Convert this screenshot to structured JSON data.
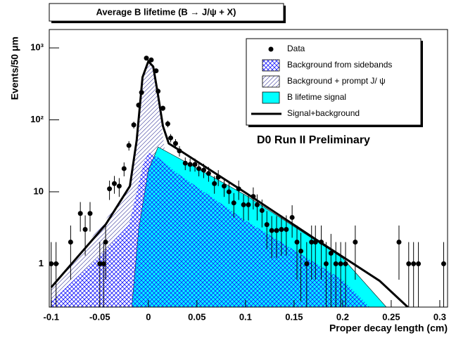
{
  "chart_data": {
    "type": "scatter",
    "title": "Average B lifetime (B → J/ψ + X)",
    "annotation": "D0 Run II Preliminary",
    "annotation_color": "#ff0000",
    "xlabel": "Proper decay length (cm)",
    "ylabel": "Events/50 μm",
    "log_y": true,
    "legend": "top-right",
    "xlim": [
      -0.102,
      0.308
    ],
    "ylim": [
      0.25,
      1800
    ],
    "xticks": [
      -0.1,
      -0.05,
      0,
      0.05,
      0.1,
      0.15,
      0.2,
      0.25,
      0.3
    ],
    "yticks": [
      1,
      10,
      {
        "value": 100,
        "label": "10²"
      },
      {
        "value": 1000,
        "label": "10³"
      }
    ],
    "series": [
      {
        "name": "Data",
        "kind": "points",
        "color": "#000000",
        "x": [
          -0.1,
          -0.095,
          -0.08,
          -0.07,
          -0.065,
          -0.06,
          -0.05,
          -0.046,
          -0.044,
          -0.04,
          -0.035,
          -0.03,
          -0.025,
          -0.02,
          -0.015,
          -0.01,
          -0.007,
          -0.002,
          0.003,
          0.008,
          0.01,
          0.015,
          0.02,
          0.023,
          0.028,
          0.032,
          0.038,
          0.043,
          0.048,
          0.052,
          0.057,
          0.062,
          0.068,
          0.072,
          0.078,
          0.083,
          0.088,
          0.093,
          0.098,
          0.103,
          0.108,
          0.112,
          0.117,
          0.122,
          0.127,
          0.132,
          0.137,
          0.142,
          0.148,
          0.153,
          0.157,
          0.163,
          0.168,
          0.172,
          0.178,
          0.183,
          0.188,
          0.193,
          0.198,
          0.203,
          0.213,
          0.258,
          0.268,
          0.273,
          0.278,
          0.304
        ],
        "values": [
          1,
          1,
          2,
          5,
          3,
          5,
          1,
          1,
          2,
          11,
          13,
          12,
          21,
          44,
          85,
          160,
          240,
          720,
          680,
          480,
          250,
          145,
          88,
          56,
          47,
          37,
          25,
          24,
          24,
          21,
          20,
          18,
          13,
          16,
          12,
          10,
          7,
          11,
          6.6,
          6.6,
          8.6,
          6.6,
          5.5,
          3.5,
          2.9,
          2.9,
          3,
          3,
          4.4,
          2,
          1.5,
          1,
          2,
          2,
          2,
          1,
          1.4,
          1,
          1,
          1,
          2,
          2,
          1,
          1,
          1,
          1
        ],
        "errors": [
          1,
          1,
          1.4,
          2.2,
          1.7,
          2.2,
          1,
          1,
          1.4,
          3.3,
          3.6,
          3.5,
          4.6,
          6.6,
          9.2,
          12.6,
          15.5,
          27,
          26,
          22,
          16,
          12,
          9.4,
          7.5,
          6.9,
          6.1,
          5,
          4.9,
          4.9,
          4.6,
          4.5,
          4.2,
          3.6,
          4,
          3.5,
          3.2,
          2.6,
          3.3,
          2.6,
          2.6,
          2.9,
          2.6,
          2.3,
          1.9,
          1.7,
          1.7,
          1.7,
          1.7,
          2.1,
          1.4,
          1.2,
          1,
          1.4,
          1.4,
          1.4,
          1,
          1.2,
          1,
          1,
          1,
          1.4,
          1.4,
          1,
          1,
          1,
          1
        ]
      },
      {
        "name": "Background from sidebands",
        "kind": "area",
        "color": "#1a1aff",
        "hatch": "cross",
        "x": [
          -0.1,
          -0.05,
          -0.02,
          -0.012,
          -0.005,
          0,
          0.01,
          0.03,
          0.1,
          0.2,
          0.228
        ],
        "values": [
          0.3,
          1.3,
          3.5,
          10,
          25,
          35,
          30,
          18,
          4,
          0.6,
          0.25
        ]
      },
      {
        "name": "Background + prompt J/ ψ",
        "kind": "area",
        "color": "#5555aa",
        "hatch": "diagonal",
        "x": [
          -0.1,
          -0.05,
          -0.02,
          -0.012,
          -0.006,
          0,
          0.005,
          0.01,
          0.015,
          0.02,
          0.03,
          0.1,
          0.2,
          0.228
        ],
        "values": [
          0.45,
          3.2,
          11,
          50,
          350,
          620,
          520,
          200,
          60,
          20,
          14,
          3,
          0.45,
          0.25
        ]
      },
      {
        "name": "B lifetime signal",
        "kind": "area",
        "color": "#00ffff",
        "x": [
          -0.017,
          -0.01,
          0,
          0.01,
          0.03,
          0.1,
          0.2,
          0.245
        ],
        "values": [
          0.25,
          3,
          20,
          42,
          30,
          9,
          1.2,
          0.25
        ]
      },
      {
        "name": "Signal+background",
        "kind": "line",
        "color": "#000000",
        "x": [
          -0.1,
          -0.044,
          -0.019,
          -0.012,
          -0.006,
          0,
          0.005,
          0.01,
          0.015,
          0.021,
          0.036,
          0.1,
          0.172,
          0.238,
          0.267
        ],
        "values": [
          0.47,
          3.5,
          12,
          52,
          390,
          650,
          550,
          220,
          82,
          47,
          35,
          9.7,
          2.2,
          0.58,
          0.25
        ]
      }
    ]
  }
}
